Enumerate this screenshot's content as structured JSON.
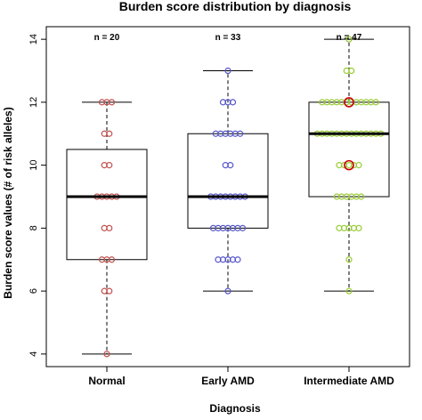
{
  "chart_data": {
    "type": "box",
    "title": "Burden score distribution by diagnosis",
    "xlabel": "Diagnosis",
    "ylabel": "Burden score values (# of risk alleles)",
    "ylim": [
      3.6,
      14.4
    ],
    "yticks": [
      "4",
      "6",
      "8",
      "10",
      "12",
      "14"
    ],
    "categories": [
      "Normal",
      "Early AMD",
      "Intermediate AMD"
    ],
    "counts": [
      "n = 20",
      "n = 33",
      "n = 47"
    ],
    "colors": {
      "Normal": "#c0504d",
      "Early AMD": "#5555cc",
      "Intermediate AMD": "#99cc33",
      "highlight": "#cc0000"
    },
    "boxes": [
      {
        "name": "Normal",
        "whisker_low": 4,
        "q1": 7,
        "median": 9,
        "q3": 10.5,
        "whisker_high": 12
      },
      {
        "name": "Early AMD",
        "whisker_low": 6,
        "q1": 8,
        "median": 9,
        "q3": 11,
        "whisker_high": 13
      },
      {
        "name": "Intermediate AMD",
        "whisker_low": 6,
        "q1": 9,
        "median": 11,
        "q3": 12,
        "whisker_high": 14
      }
    ],
    "points": [
      {
        "group": "Normal",
        "values": [
          4,
          6,
          6,
          7,
          7,
          7,
          8,
          8,
          9,
          9,
          9,
          9,
          9,
          10,
          10,
          11,
          11,
          12,
          12,
          12
        ]
      },
      {
        "group": "Early AMD",
        "values": [
          6,
          7,
          7,
          7,
          7,
          7,
          8,
          8,
          8,
          8,
          8,
          8,
          8,
          9,
          9,
          9,
          9,
          9,
          9,
          9,
          9,
          10,
          10,
          11,
          11,
          11,
          11,
          11,
          11,
          12,
          12,
          12,
          13
        ]
      },
      {
        "group": "Intermediate AMD",
        "values": [
          6,
          7,
          8,
          8,
          8,
          8,
          8,
          9,
          9,
          9,
          9,
          9,
          9,
          10,
          10,
          10,
          10,
          10,
          11,
          11,
          11,
          11,
          11,
          11,
          11,
          11,
          11,
          11,
          11,
          11,
          11,
          11,
          12,
          12,
          12,
          12,
          12,
          12,
          12,
          12,
          12,
          12,
          12,
          12,
          13,
          13,
          14
        ]
      }
    ],
    "highlighted_points": [
      {
        "group": "Intermediate AMD",
        "value": 12
      },
      {
        "group": "Intermediate AMD",
        "value": 10
      }
    ]
  }
}
